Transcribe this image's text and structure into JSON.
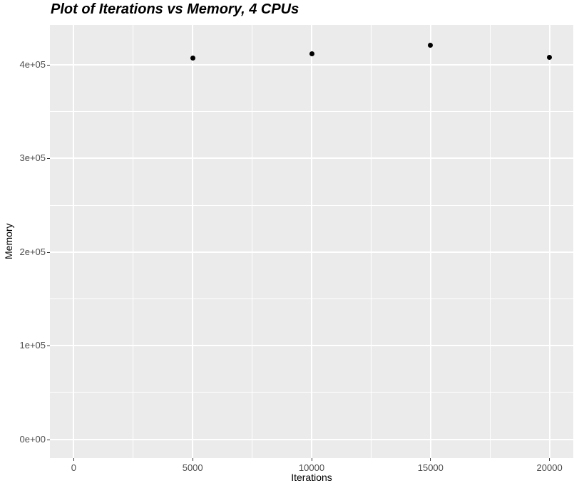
{
  "title": "Plot of Iterations vs Memory, 4 CPUs",
  "colors": {
    "page_bg": "#FFFFFF",
    "panel_bg": "#EBEBEB",
    "gridline": "#FFFFFF",
    "point": "#000000",
    "tick_label": "#4D4D4D",
    "tick_mark": "#333333",
    "axis_title": "#000000",
    "title_text": "#000000"
  },
  "chart_data": {
    "type": "scatter",
    "title": "Plot of Iterations vs Memory, 4 CPUs",
    "xlabel": "Iterations",
    "ylabel": "Memory",
    "points": [
      {
        "x": 5000,
        "y": 407000
      },
      {
        "x": 10000,
        "y": 412000
      },
      {
        "x": 15000,
        "y": 421000
      },
      {
        "x": 20000,
        "y": 408000
      }
    ],
    "x_ticks": [
      {
        "value": 0,
        "label": "0"
      },
      {
        "value": 5000,
        "label": "5000"
      },
      {
        "value": 10000,
        "label": "10000"
      },
      {
        "value": 15000,
        "label": "15000"
      },
      {
        "value": 20000,
        "label": "20000"
      }
    ],
    "y_ticks": [
      {
        "value": 0,
        "label": "0e+00"
      },
      {
        "value": 100000,
        "label": "1e+05"
      },
      {
        "value": 200000,
        "label": "2e+05"
      },
      {
        "value": 300000,
        "label": "3e+05"
      },
      {
        "value": 400000,
        "label": "4e+05"
      }
    ],
    "x_minor": [
      2500,
      7500,
      12500,
      17500
    ],
    "y_minor": [
      50000,
      150000,
      250000,
      350000
    ],
    "xlim": [
      -1000,
      21000
    ],
    "ylim": [
      -20000,
      442500
    ],
    "grid": true,
    "legend": "none",
    "theme": "ggplot-gray"
  }
}
